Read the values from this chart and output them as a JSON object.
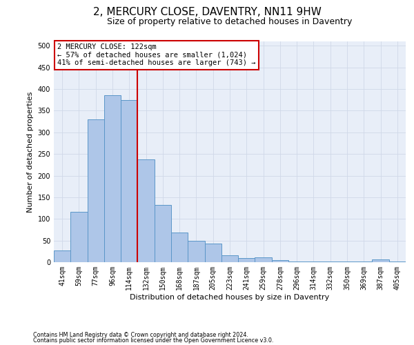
{
  "title": "2, MERCURY CLOSE, DAVENTRY, NN11 9HW",
  "subtitle": "Size of property relative to detached houses in Daventry",
  "xlabel": "Distribution of detached houses by size in Daventry",
  "ylabel": "Number of detached properties",
  "bar_labels": [
    "41sqm",
    "59sqm",
    "77sqm",
    "96sqm",
    "114sqm",
    "132sqm",
    "150sqm",
    "168sqm",
    "187sqm",
    "205sqm",
    "223sqm",
    "241sqm",
    "259sqm",
    "278sqm",
    "296sqm",
    "314sqm",
    "332sqm",
    "350sqm",
    "369sqm",
    "387sqm",
    "405sqm"
  ],
  "bar_values": [
    27,
    116,
    330,
    385,
    375,
    237,
    132,
    68,
    50,
    43,
    16,
    9,
    11,
    5,
    2,
    1,
    1,
    1,
    1,
    6,
    1
  ],
  "bar_color": "#aec6e8",
  "bar_edge_color": "#5a96c8",
  "vline_x": 4.5,
  "vline_color": "#cc0000",
  "annotation_title": "2 MERCURY CLOSE: 122sqm",
  "annotation_line1": "← 57% of detached houses are smaller (1,024)",
  "annotation_line2": "41% of semi-detached houses are larger (743) →",
  "annotation_box_color": "#ffffff",
  "annotation_box_edge": "#cc0000",
  "footnote1": "Contains HM Land Registry data © Crown copyright and database right 2024.",
  "footnote2": "Contains public sector information licensed under the Open Government Licence v3.0.",
  "ylim": [
    0,
    510
  ],
  "yticks": [
    0,
    50,
    100,
    150,
    200,
    250,
    300,
    350,
    400,
    450,
    500
  ],
  "grid_color": "#d0d8e8",
  "background_color": "#e8eef8",
  "title_fontsize": 11,
  "subtitle_fontsize": 9,
  "axis_fontsize": 8,
  "tick_fontsize": 7,
  "annotation_fontsize": 7.5
}
